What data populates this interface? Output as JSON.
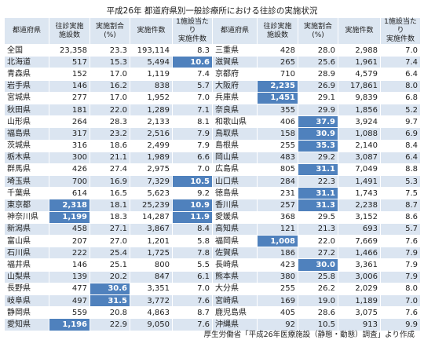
{
  "title": "平成26年 都道府県別一般診療所における往診の実施状況",
  "highlight_color": "#4f81bd",
  "table": {
    "header": [
      "都道府県",
      "往診実施\n施設数",
      "実施割合\n(%)",
      "実施件数",
      "1施設当たり\n実施件数"
    ],
    "rows": [
      [
        "全国",
        "23,358",
        "23.3",
        "193,114",
        "8.3",
        "三重県",
        "428",
        "28.0",
        "2,988",
        "7.0"
      ],
      [
        "北海道",
        "517",
        "15.3",
        "5,494",
        {
          "text": "10.6",
          "highlight": true
        },
        "滋賀県",
        "265",
        "25.6",
        "1,961",
        "7.4"
      ],
      [
        "青森県",
        "152",
        "17.0",
        "1,119",
        "7.4",
        "京都府",
        "710",
        "28.9",
        "4,579",
        "6.4"
      ],
      [
        "岩手県",
        "146",
        "16.2",
        "838",
        "5.7",
        "大阪府",
        {
          "text": "2,235",
          "highlight": true
        },
        "26.9",
        "17,861",
        "8.0"
      ],
      [
        "宮城県",
        "277",
        "17.0",
        "1,952",
        "7.0",
        "兵庫県",
        {
          "text": "1,451",
          "highlight": true
        },
        "29.1",
        "9,839",
        "6.8"
      ],
      [
        "秋田県",
        "181",
        "22.0",
        "1,289",
        "7.1",
        "奈良県",
        "355",
        "29.9",
        "1,856",
        "5.2"
      ],
      [
        "山形県",
        "264",
        "28.3",
        "2,133",
        "8.1",
        "和歌山県",
        "406",
        {
          "text": "37.9",
          "highlight": true
        },
        "3,924",
        "9.7"
      ],
      [
        "福島県",
        "317",
        "23.2",
        "2,516",
        "7.9",
        "鳥取県",
        "158",
        {
          "text": "30.9",
          "highlight": true
        },
        "1,088",
        "6.9"
      ],
      [
        "茨城県",
        "316",
        "18.6",
        "2,499",
        "7.9",
        "島根県",
        "255",
        {
          "text": "35.3",
          "highlight": true
        },
        "2,140",
        "8.4"
      ],
      [
        "栃木県",
        "300",
        "21.1",
        "1,989",
        "6.6",
        "岡山県",
        "483",
        "29.2",
        "3,087",
        "6.4"
      ],
      [
        "群馬県",
        "426",
        "27.4",
        "2,975",
        "7.0",
        "広島県",
        "805",
        {
          "text": "31.1",
          "highlight": true
        },
        "7,049",
        "8.8"
      ],
      [
        "埼玉県",
        "700",
        "16.9",
        "7,329",
        {
          "text": "10.5",
          "highlight": true
        },
        "山口県",
        "284",
        "22.3",
        "1,491",
        "5.3"
      ],
      [
        "千葉県",
        "614",
        "16.5",
        "5,623",
        "9.2",
        "徳島県",
        "231",
        {
          "text": "31.1",
          "highlight": true
        },
        "1,743",
        "7.5"
      ],
      [
        "東京都",
        {
          "text": "2,318",
          "highlight": true
        },
        "18.1",
        "25,239",
        {
          "text": "10.9",
          "highlight": true
        },
        "香川県",
        "257",
        {
          "text": "31.3",
          "highlight": true
        },
        "2,238",
        "8.7"
      ],
      [
        "神奈川県",
        {
          "text": "1,199",
          "highlight": true
        },
        "18.3",
        "14,287",
        {
          "text": "11.9",
          "highlight": true
        },
        "愛媛県",
        "368",
        "29.5",
        "3,152",
        "8.6"
      ],
      [
        "新潟県",
        "458",
        "27.1",
        "3,867",
        "8.4",
        "高知県",
        "121",
        "21.3",
        "693",
        "5.7"
      ],
      [
        "富山県",
        "207",
        "27.0",
        "1,201",
        "5.8",
        "福岡県",
        {
          "text": "1,008",
          "highlight": true
        },
        "22.0",
        "7,669",
        "7.6"
      ],
      [
        "石川県",
        "222",
        "25.4",
        "1,725",
        "7.8",
        "佐賀県",
        "186",
        "27.2",
        "1,466",
        "7.9"
      ],
      [
        "福井県",
        "146",
        "25.1",
        "800",
        "5.5",
        "長崎県",
        "423",
        {
          "text": "30.0",
          "highlight": true
        },
        "3,361",
        "7.9"
      ],
      [
        "山梨県",
        "139",
        "20.2",
        "847",
        "6.1",
        "熊本県",
        "380",
        "25.8",
        "3,006",
        "7.9"
      ],
      [
        "長野県",
        "477",
        {
          "text": "30.6",
          "highlight": true
        },
        "3,351",
        "7.0",
        "大分県",
        "255",
        "26.2",
        "2,029",
        "8.0"
      ],
      [
        "岐阜県",
        "497",
        {
          "text": "31.5",
          "highlight": true
        },
        "3,772",
        "7.6",
        "宮崎県",
        "169",
        "19.0",
        "1,189",
        "7.0"
      ],
      [
        "静岡県",
        "559",
        "20.8",
        "4,863",
        "8.7",
        "鹿児島県",
        "405",
        "28.6",
        "3,075",
        "7.6"
      ],
      [
        "愛知県",
        {
          "text": "1,196",
          "highlight": true
        },
        "22.9",
        "9,050",
        "7.6",
        "沖縄県",
        "92",
        "10.5",
        "913",
        "9.9"
      ]
    ]
  },
  "footer": "厚生労働省「平成26年医療施設（静態・動態）調査」より作成"
}
